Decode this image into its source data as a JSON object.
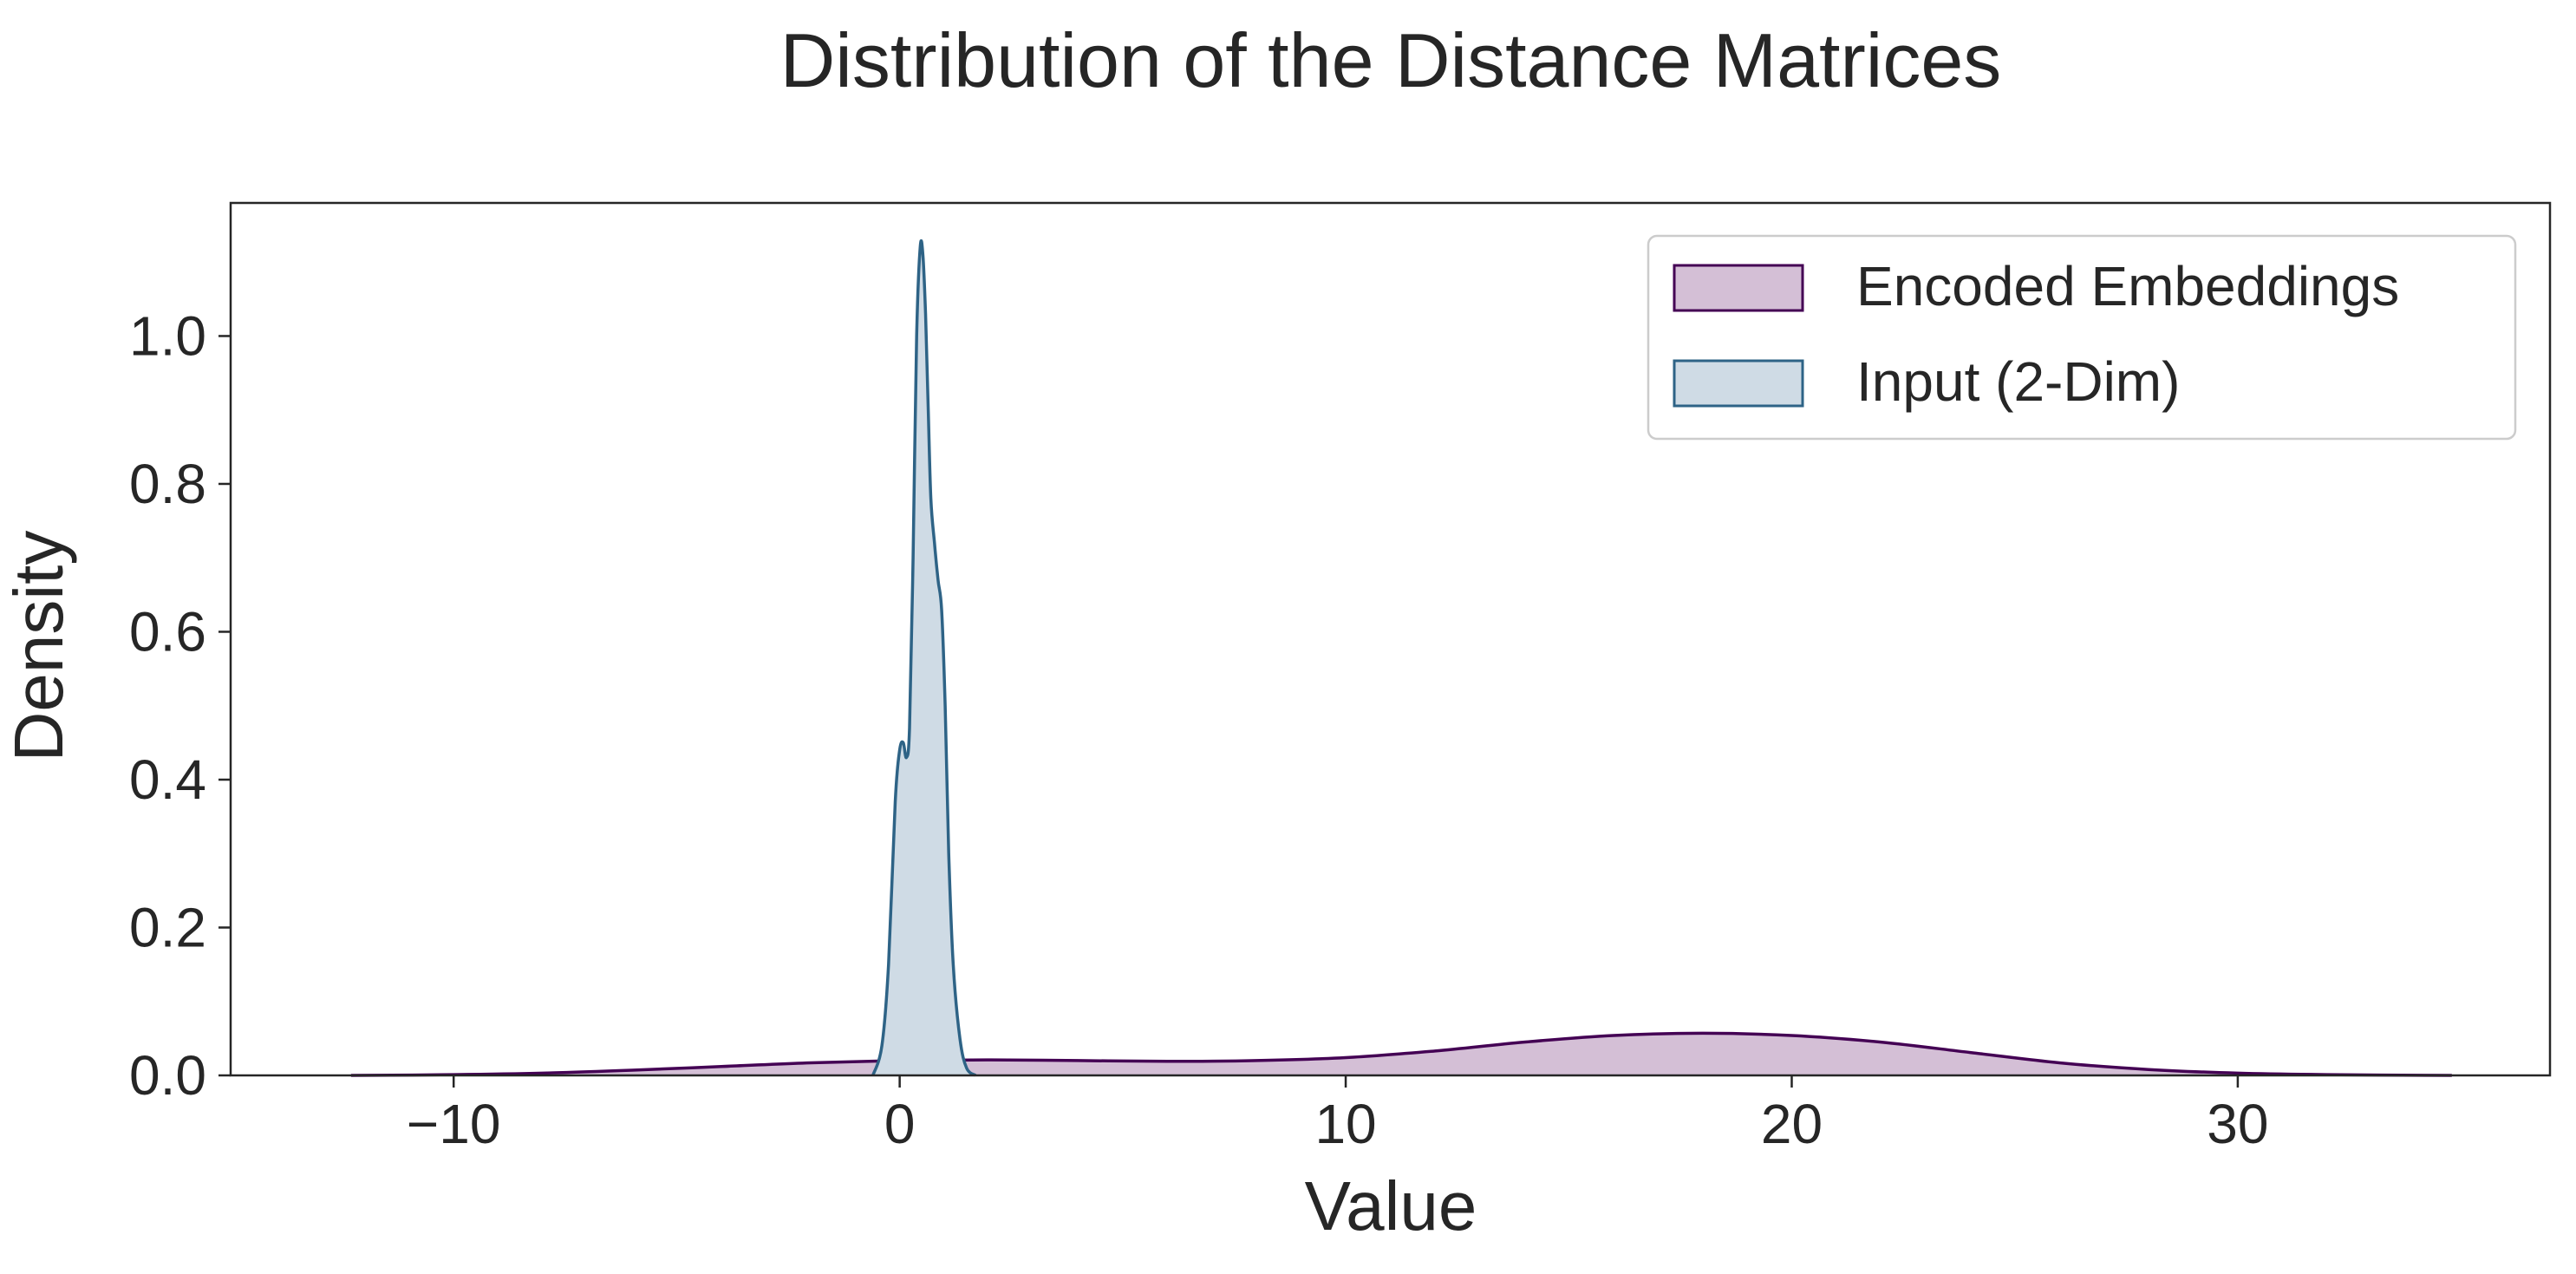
{
  "chart_data": {
    "type": "area",
    "title": "Distribution of the Distance Matrices",
    "xlabel": "Value",
    "ylabel": "Density",
    "xlim": [
      -15,
      37
    ],
    "ylim": [
      0,
      1.18
    ],
    "xticks": [
      -10,
      0,
      10,
      20,
      30
    ],
    "xtick_labels": [
      "−10",
      "0",
      "10",
      "20",
      "30"
    ],
    "yticks": [
      0.0,
      0.2,
      0.4,
      0.6,
      0.8,
      1.0
    ],
    "ytick_labels": [
      "0.0",
      "0.2",
      "0.4",
      "0.6",
      "0.8",
      "1.0"
    ],
    "grid": false,
    "legend_position": "top-right",
    "series": [
      {
        "name": "Encoded Embeddings",
        "line_color": "#440154",
        "fill_color": "#d4bfd6",
        "x": [
          -12.3,
          -10,
          -8,
          -6,
          -4,
          -2,
          0,
          2,
          4,
          6,
          8,
          10,
          12,
          14,
          16,
          18,
          20,
          22,
          24,
          26,
          28,
          30,
          32,
          34.8
        ],
        "y": [
          0.0,
          0.001,
          0.003,
          0.007,
          0.012,
          0.017,
          0.02,
          0.021,
          0.02,
          0.019,
          0.02,
          0.024,
          0.033,
          0.045,
          0.054,
          0.057,
          0.054,
          0.045,
          0.031,
          0.017,
          0.008,
          0.003,
          0.001,
          0.0
        ]
      },
      {
        "name": "Input (2-Dim)",
        "line_color": "#2e6386",
        "fill_color": "#cfdbe5",
        "x": [
          -0.6,
          -0.4,
          -0.25,
          -0.1,
          0.0,
          0.08,
          0.15,
          0.22,
          0.3,
          0.38,
          0.46,
          0.52,
          0.58,
          0.64,
          0.7,
          0.78,
          0.86,
          0.94,
          1.02,
          1.1,
          1.2,
          1.35,
          1.5,
          1.7
        ],
        "y": [
          0.0,
          0.04,
          0.15,
          0.37,
          0.44,
          0.45,
          0.43,
          0.47,
          0.7,
          1.0,
          1.12,
          1.11,
          1.03,
          0.9,
          0.78,
          0.72,
          0.67,
          0.63,
          0.5,
          0.3,
          0.15,
          0.05,
          0.01,
          0.0
        ]
      }
    ]
  }
}
